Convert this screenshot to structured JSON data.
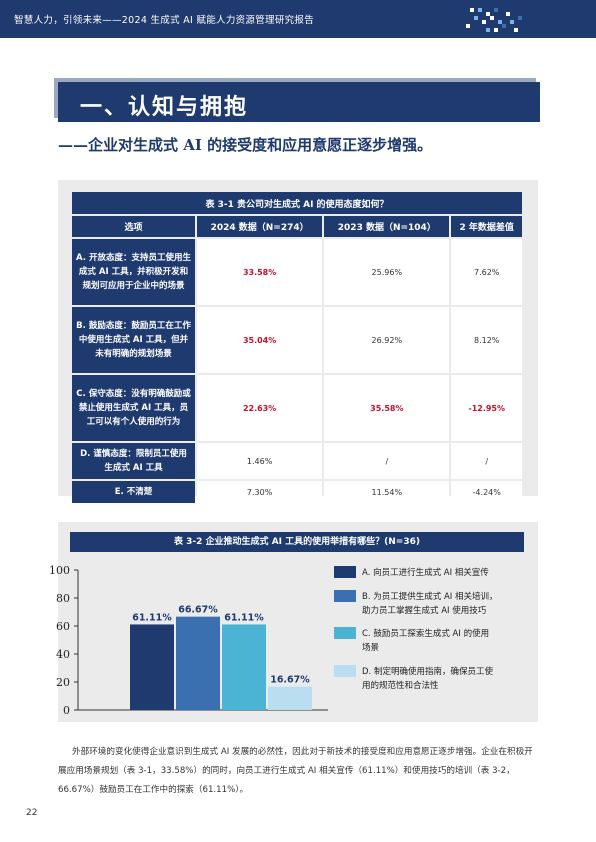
{
  "header": {
    "title": "智慧人力，引领未来——2024 生成式 AI 赋能人力资源管理研究报告"
  },
  "section": {
    "heading": "一、认知与拥抱",
    "subtitle": "——企业对生成式 AI 的接受度和应用意愿正逐步增强。"
  },
  "table1": {
    "caption": "表 3-1 贵公司对生成式 AI 的使用态度如何？",
    "headers": [
      "选项",
      "2024 数据（N=274）",
      "2023 数据（N=104）",
      "2 年数据差值"
    ],
    "rows": [
      {
        "option": "A. 开放态度：支持员工使用生成式 AI 工具，并积极开发和规划可应用于企业中的场景",
        "v2024": "33.58%",
        "v2023": "25.96%",
        "diff": "7.62%"
      },
      {
        "option": "B. 鼓励态度：鼓励员工在工作中使用生成式 AI 工具，但并未有明确的规划场景",
        "v2024": "35.04%",
        "v2023": "26.92%",
        "diff": "8.12%"
      },
      {
        "option": "C. 保守态度：没有明确鼓励或禁止使用生成式 AI 工具，员工可以有个人使用的行为",
        "v2024": "22.63%",
        "v2023": "35.58%",
        "diff": "-12.95%"
      },
      {
        "option": "D. 谨慎态度：限制员工使用生成式 AI 工具",
        "v2024": "1.46%",
        "v2023": "/",
        "diff": "/"
      },
      {
        "option": "E. 不清楚",
        "v2024": "7.30%",
        "v2023": "11.54%",
        "diff": "-4.24%"
      }
    ]
  },
  "chart_data": {
    "type": "bar",
    "title": "表 3-2 企业推动生成式 AI 工具的使用举措有哪些？(N=36)",
    "categories": [
      "A",
      "B",
      "C",
      "D"
    ],
    "values": [
      61.11,
      66.67,
      61.11,
      16.67
    ],
    "value_labels": [
      "61.11%",
      "66.67%",
      "61.11%",
      "16.67%"
    ],
    "colors": [
      "#1f3a6e",
      "#3a6fb0",
      "#4bb3d3",
      "#b8def0"
    ],
    "yticks": [
      "0",
      "20",
      "40",
      "60",
      "80",
      "100"
    ],
    "ylim": [
      0,
      100
    ],
    "legend": [
      {
        "line1": "A. 向员工进行生成式 AI 相关宣传",
        "line2": ""
      },
      {
        "line1": "B. 为员工提供生成式 AI 相关培训，",
        "line2": "助力员工掌握生成式 AI 使用技巧"
      },
      {
        "line1": "C. 鼓励员工探索生成式 AI 的使用",
        "line2": "场景"
      },
      {
        "line1": "D. 制定明确使用指南，确保员工使",
        "line2": "用的规范性和合法性"
      }
    ],
    "legend_position": "right"
  },
  "body": {
    "paragraph": "外部环境的变化使得企业意识到生成式 AI 发展的必然性，因此对于新技术的接受度和应用意愿正逐步增强。企业在积极开展应用场景规划（表 3-1，33.58%）的同时，向员工进行生成式 AI 相关宣传（61.11%）和使用技巧的培训（表 3-2，66.67%）鼓励员工在工作中的探索（61.11%）。"
  },
  "footer": {
    "page_number": "22"
  }
}
